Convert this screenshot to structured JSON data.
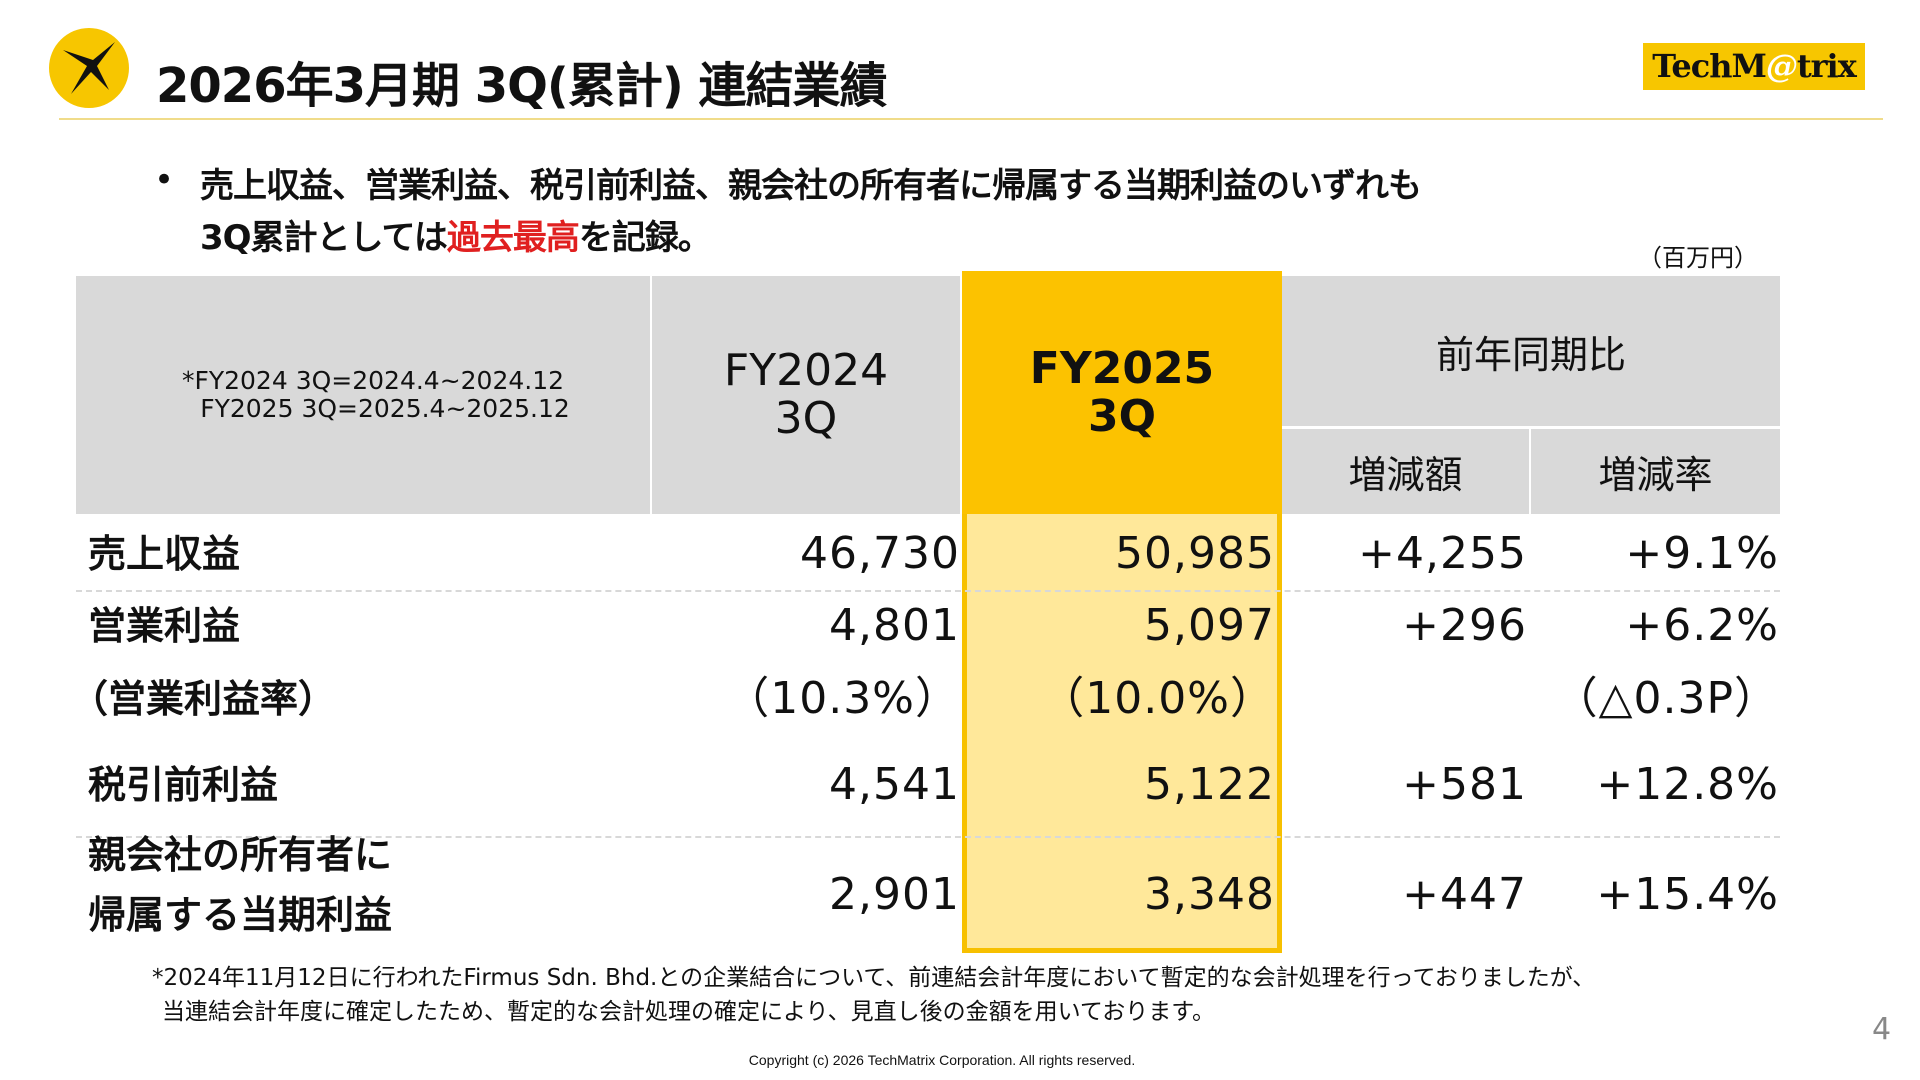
{
  "header": {
    "title": "2026年3月期 3Q(累計) 連結業績",
    "brand": {
      "prefix": "TechM",
      "at": "@",
      "suffix": "trix"
    }
  },
  "summary": {
    "bullet": "•",
    "line1": "売上収益、営業利益、税引前利益、親会社の所有者に帰属する当期利益のいずれも",
    "line2_pre": "3Q累計としては",
    "line2_highlight": "過去最高",
    "line2_post": "を記録。"
  },
  "table": {
    "unit": "（百万円）",
    "note_line1": "*FY2024 3Q=2024.4~2024.12",
    "note_line2": "FY2025 3Q=2025.4~2025.12",
    "col_fy2024": [
      "FY2024",
      "3Q"
    ],
    "col_fy2025": [
      "FY2025",
      "3Q"
    ],
    "col_yoy": "前年同期比",
    "col_change": "増減額",
    "col_rate": "増減率",
    "rows": [
      {
        "label": "売上収益",
        "fy2024": "46,730",
        "fy2025": "50,985",
        "change": "+4,255",
        "rate": "+9.1%"
      },
      {
        "label": "営業利益",
        "fy2024": "4,801",
        "fy2025": "5,097",
        "change": "+296",
        "rate": "+6.2%"
      },
      {
        "label": "（営業利益率）",
        "fy2024": "（10.3%）",
        "fy2025": "（10.0%）",
        "change": "",
        "rate": "（△0.3P）"
      },
      {
        "label": "税引前利益",
        "fy2024": "4,541",
        "fy2025": "5,122",
        "change": "+581",
        "rate": "+12.8%"
      },
      {
        "label": "親会社の所有者に",
        "label2": "帰属する当期利益",
        "fy2024": "2,901",
        "fy2025": "3,348",
        "change": "+447",
        "rate": "+15.4%"
      }
    ]
  },
  "footnote": {
    "line1": "*2024年11月12日に行われたFirmus Sdn. Bhd.との企業結合について、前連結会計年度において暫定的な会計処理を行っておりましたが、",
    "line2": "当連結会計年度に確定したため、暫定的な会計処理の確定により、見直し後の金額を用いております。"
  },
  "page_number": "4",
  "copyright": "Copyright (c) 2026 TechMatrix Corporation. All rights reserved.",
  "colors": {
    "accent": "#fcc200",
    "highlight": "#ffe89a",
    "header_gray": "#d9d9d9",
    "record_red": "#e02020"
  }
}
